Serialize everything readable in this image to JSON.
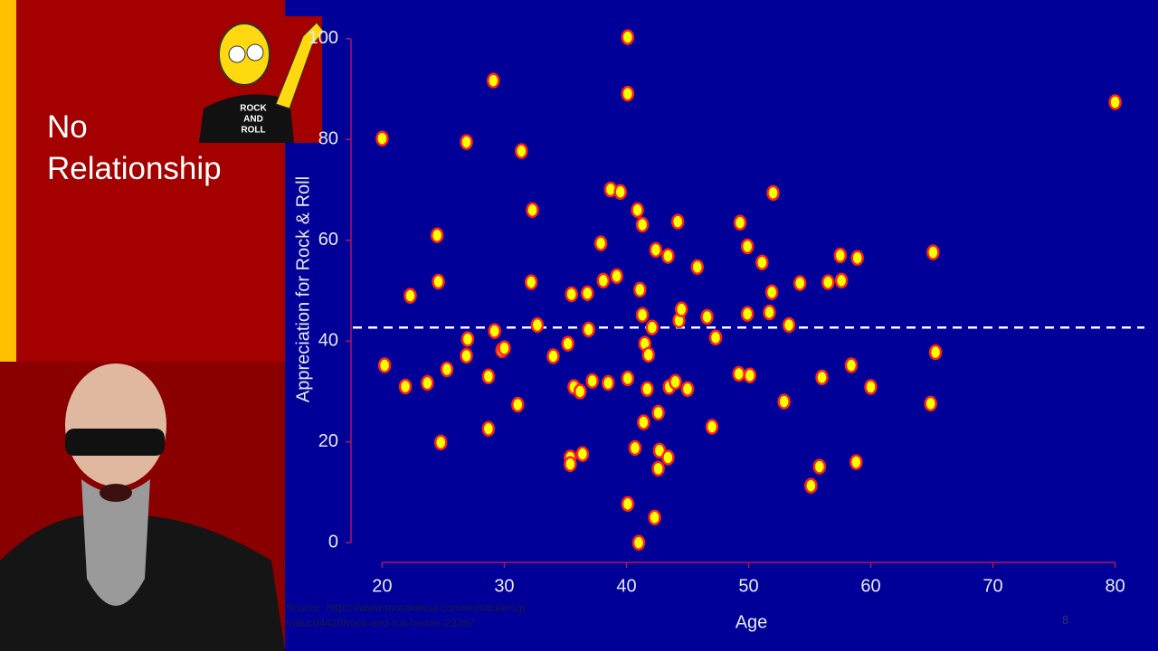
{
  "slide": {
    "title": "No Relationship",
    "source": "Source: https://www.moraldecal.com/en/stickers/product/4428/rock-and-roll-homer-23287",
    "page_number": "8"
  },
  "chart_data": {
    "type": "scatter",
    "x_label": "Age",
    "y_label": "Appreciation for Rock & Roll",
    "xlim": [
      17.6,
      82.4
    ],
    "ylim": [
      -3.9,
      102.3
    ],
    "xticks": [
      20,
      30,
      40,
      50,
      60,
      70,
      80
    ],
    "yticks": [
      0,
      20,
      40,
      60,
      80,
      100
    ],
    "reference_line": 42.7,
    "point_color": "#ffff00",
    "point_edge": "#ff2020",
    "x": [
      20,
      20.2,
      21.9,
      22.3,
      23.7,
      24.5,
      24.6,
      24.8,
      25.3,
      26.9,
      27.0,
      26.9,
      28.7,
      28.7,
      29.1,
      29.2,
      29.8,
      30.0,
      31.1,
      31.4,
      32.3,
      32.2,
      32.7,
      34.0,
      35.2,
      35.5,
      35.4,
      35.4,
      35.7,
      36.2,
      36.4,
      36.8,
      36.9,
      37.2,
      37.9,
      38.1,
      38.5,
      38.7,
      39.2,
      39.5,
      40.1,
      40.1,
      40.1,
      40.1,
      40.7,
      40.9,
      41.0,
      41.1,
      41.3,
      41.3,
      41.4,
      41.5,
      41.8,
      41.7,
      42.1,
      42.3,
      42.4,
      42.6,
      42.7,
      42.6,
      43.4,
      43.4,
      43.5,
      44.0,
      44.2,
      44.3,
      44.5,
      45.0,
      45.8,
      46.6,
      47.0,
      47.3,
      49.3,
      49.2,
      49.9,
      49.9,
      50.1,
      51.1,
      51.7,
      51.9,
      52.0,
      52.9,
      53.3,
      54.2,
      55.1,
      55.8,
      56.0,
      56.5,
      57.5,
      57.6,
      58.4,
      58.9,
      58.8,
      60.0,
      64.9,
      65.1,
      65.3,
      80.0
    ],
    "y": [
      80.2,
      35.2,
      31.0,
      49.0,
      31.7,
      61.0,
      51.8,
      19.9,
      34.4,
      79.5,
      40.4,
      37.1,
      33.0,
      22.6,
      91.7,
      42.0,
      38.2,
      38.6,
      27.4,
      77.7,
      66.0,
      51.7,
      43.2,
      37.0,
      39.5,
      49.3,
      16.9,
      15.6,
      30.9,
      30.0,
      17.6,
      49.5,
      42.3,
      32.1,
      59.4,
      52.0,
      31.7,
      70.1,
      52.9,
      69.6,
      100.3,
      89.1,
      32.6,
      7.7,
      18.8,
      66.0,
      0,
      50.2,
      63.1,
      45.2,
      23.9,
      39.5,
      37.3,
      30.5,
      42.7,
      5.0,
      58.1,
      25.8,
      18.3,
      14.7,
      56.9,
      16.9,
      30.9,
      31.9,
      63.7,
      44.1,
      46.3,
      30.5,
      54.7,
      44.8,
      23.0,
      40.7,
      63.5,
      33.5,
      58.8,
      45.4,
      33.2,
      55.6,
      45.7,
      49.7,
      69.4,
      28.0,
      43.2,
      51.5,
      11.3,
      15.1,
      32.8,
      51.7,
      57.0,
      52.0,
      35.2,
      56.5,
      16.0,
      30.9,
      27.6,
      57.6,
      37.8,
      87.4
    ]
  }
}
